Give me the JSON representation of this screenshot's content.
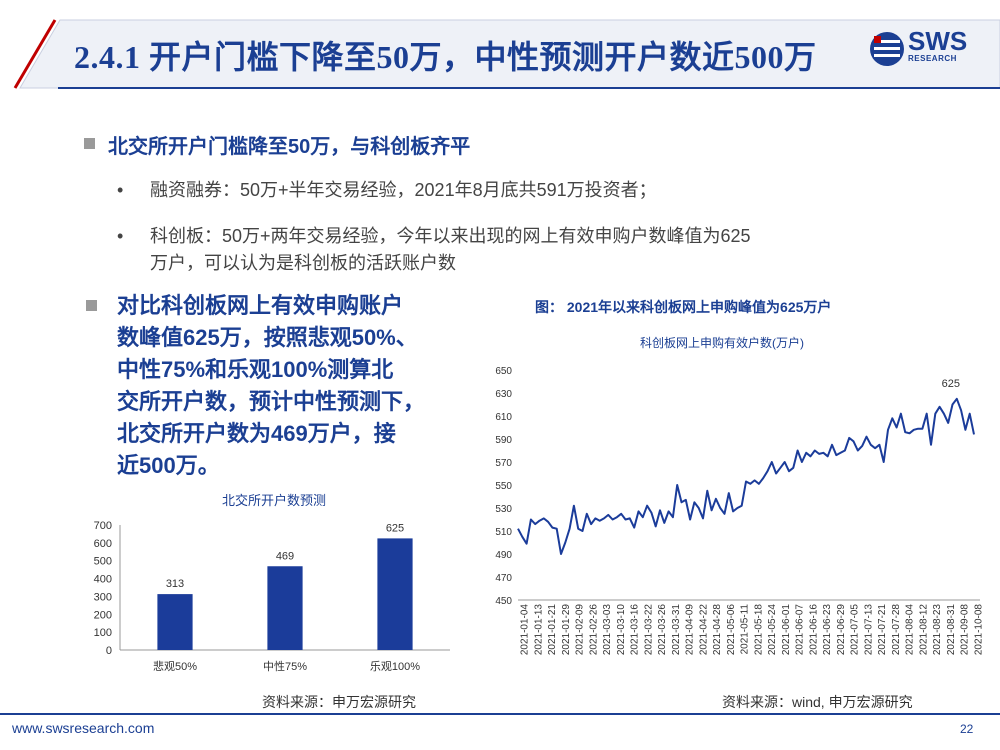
{
  "header": {
    "title": "2.4.1 开户门槛下降至50万，中性预测开户数近500万",
    "logo_text": "SWS",
    "logo_sub": "RESEARCH",
    "accent_color": "#1b3f93"
  },
  "section1": {
    "heading": "北交所开户门槛降至50万，与科创板齐平",
    "bullets": [
      "融资融券：50万+半年交易经验，2021年8月底共591万投资者；",
      "科创板：50万+两年交易经验，今年以来出现的网上有效申购户数峰值为625",
      "万户，可以认为是科创板的活跃账户数"
    ]
  },
  "section2": {
    "lines": [
      "对比科创板网上有效申购账户",
      "数峰值625万，按照悲观50%、",
      "中性75%和乐观100%测算北",
      "交所开户数，预计中性预测下，",
      "北交所开户数为469万户，接",
      "近500万。"
    ]
  },
  "figure_caption": "图：  2021年以来科创板网上申购峰值为625万户",
  "bar_source": "资料来源：申万宏源研究",
  "line_source": "资料来源：wind, 申万宏源研究",
  "footer": {
    "url": "www.swsresearch.com",
    "page": "22"
  },
  "chart_data": [
    {
      "type": "bar",
      "title": "北交所开户数预测",
      "categories": [
        "悲观50%",
        "中性75%",
        "乐观100%"
      ],
      "values": [
        313,
        469,
        625
      ],
      "ylim": [
        0,
        700
      ],
      "yticks": [
        0,
        100,
        200,
        300,
        400,
        500,
        600,
        700
      ],
      "color": "#1b3c9a",
      "grid": false
    },
    {
      "type": "line",
      "title": "科创板网上申购有效户数(万户)",
      "ylim": [
        450,
        650
      ],
      "yticks": [
        450,
        470,
        490,
        510,
        530,
        550,
        570,
        590,
        610,
        630,
        650
      ],
      "x_tick_labels": [
        "2021-01-04",
        "2021-01-13",
        "2021-01-21",
        "2021-01-29",
        "2021-02-09",
        "2021-02-26",
        "2021-03-03",
        "2021-03-10",
        "2021-03-16",
        "2021-03-22",
        "2021-03-26",
        "2021-03-31",
        "2021-04-09",
        "2021-04-22",
        "2021-04-28",
        "2021-05-06",
        "2021-05-11",
        "2021-05-18",
        "2021-05-24",
        "2021-06-01",
        "2021-06-07",
        "2021-06-16",
        "2021-06-23",
        "2021-06-29",
        "2021-07-05",
        "2021-07-13",
        "2021-07-21",
        "2021-07-28",
        "2021-08-04",
        "2021-08-12",
        "2021-08-23",
        "2021-08-31",
        "2021-09-08",
        "2021-10-08"
      ],
      "values": [
        512,
        505,
        499,
        520,
        516,
        519,
        521,
        518,
        513,
        512,
        490,
        500,
        512,
        532,
        512,
        510,
        525,
        516,
        521,
        519,
        521,
        524,
        520,
        522,
        525,
        520,
        521,
        513,
        527,
        522,
        532,
        526,
        514,
        528,
        517,
        527,
        522,
        550,
        535,
        537,
        520,
        535,
        530,
        521,
        545,
        528,
        538,
        530,
        525,
        543,
        527,
        530,
        532,
        553,
        551,
        554,
        551,
        556,
        562,
        570,
        560,
        565,
        570,
        562,
        565,
        580,
        570,
        578,
        575,
        580,
        577,
        578,
        575,
        585,
        576,
        578,
        580,
        591,
        588,
        580,
        584,
        592,
        585,
        582,
        585,
        570,
        598,
        608,
        600,
        612,
        596,
        595,
        598,
        599,
        599,
        612,
        585,
        612,
        618,
        612,
        604,
        620,
        625,
        615,
        598,
        612,
        594
      ],
      "annotation": {
        "text": "625",
        "value": 625
      },
      "color": "#1b3c9a",
      "grid": false
    }
  ]
}
